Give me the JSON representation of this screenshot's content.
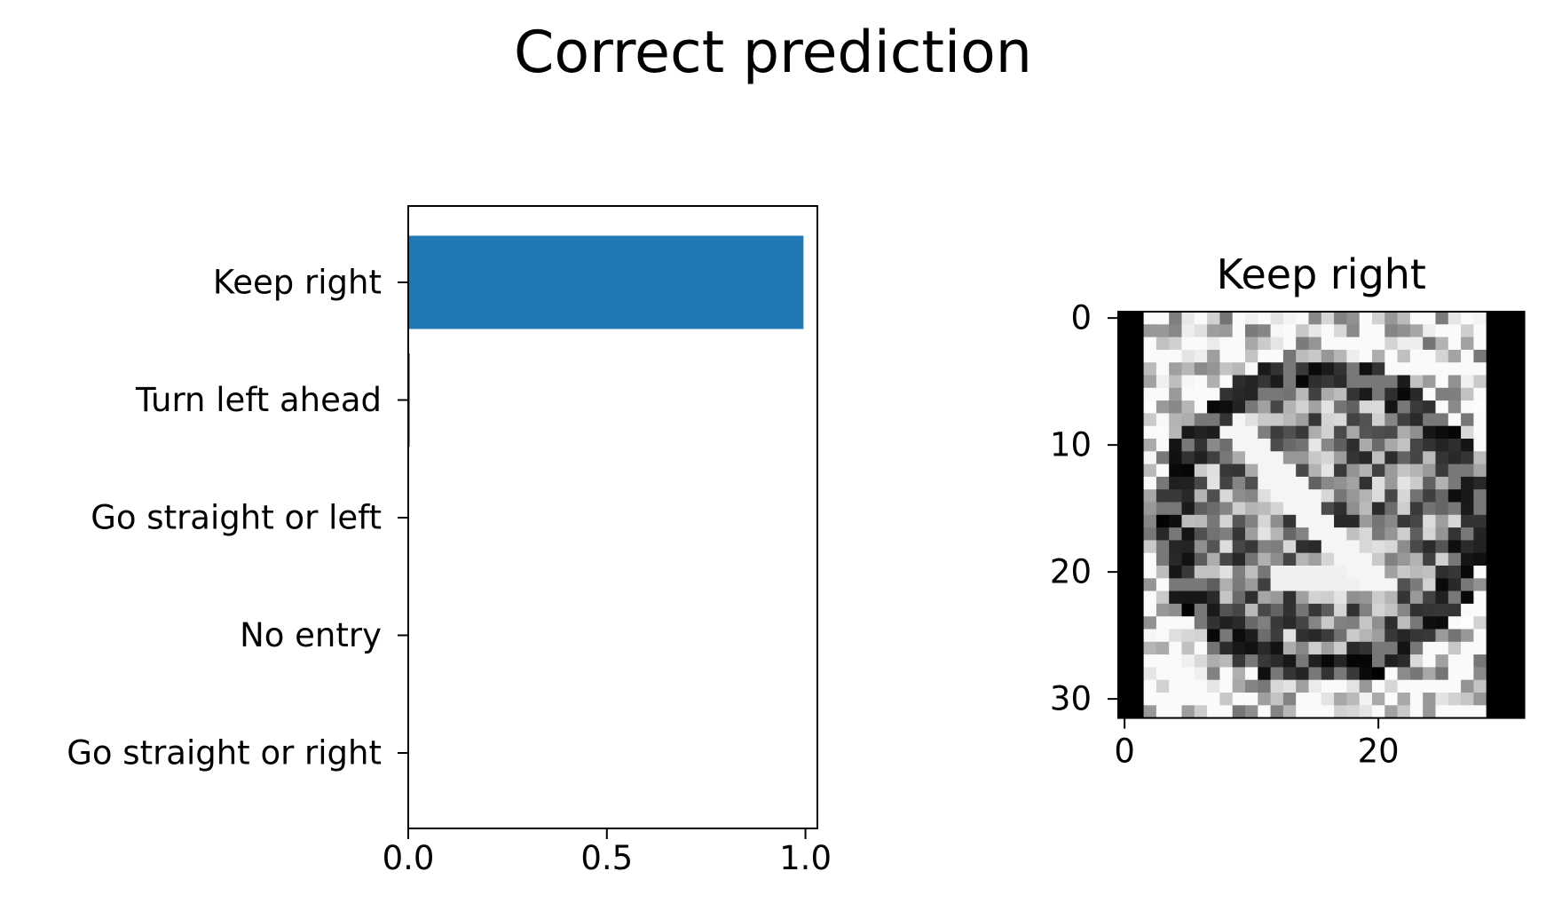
{
  "figure": {
    "suptitle": "Correct prediction"
  },
  "chart_data": [
    {
      "type": "bar",
      "orientation": "horizontal",
      "categories": [
        "Keep right",
        "Turn left ahead",
        "Go straight or left",
        "No entry",
        "Go straight or right"
      ],
      "values": [
        0.995,
        0.004,
        0.0005,
        0.0003,
        0.0001
      ],
      "xlim": [
        0,
        1.03
      ],
      "xticks": [
        "0.0",
        "0.5",
        "1.0"
      ],
      "title": "",
      "xlabel": "",
      "ylabel": "",
      "bar_color": "#1f77b4",
      "grid": false
    },
    {
      "type": "heatmap",
      "title": "Keep right",
      "colormap": "gray",
      "xticks": [
        "0",
        "20"
      ],
      "yticks": [
        "0",
        "10",
        "20",
        "30"
      ],
      "rows": 32,
      "cols": 32,
      "grid": false
    }
  ]
}
